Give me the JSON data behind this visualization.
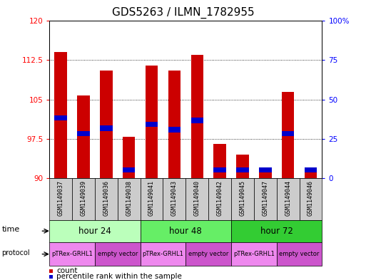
{
  "title": "GDS5263 / ILMN_1782955",
  "samples": [
    "GSM1149037",
    "GSM1149039",
    "GSM1149036",
    "GSM1149038",
    "GSM1149041",
    "GSM1149043",
    "GSM1149040",
    "GSM1149042",
    "GSM1149045",
    "GSM1149047",
    "GSM1149044",
    "GSM1149046"
  ],
  "red_values": [
    114.0,
    105.8,
    110.5,
    97.8,
    111.5,
    110.5,
    113.5,
    96.5,
    94.5,
    91.5,
    106.5,
    92.0
  ],
  "blue_values": [
    101.5,
    98.5,
    99.5,
    91.5,
    100.2,
    99.2,
    101.0,
    91.5,
    91.5,
    91.5,
    98.5,
    91.5
  ],
  "ymin": 90,
  "ymax": 120,
  "yticks": [
    90,
    97.5,
    105,
    112.5,
    120
  ],
  "y2ticks_pct": [
    0,
    25,
    50,
    75,
    100
  ],
  "y2labels": [
    "0",
    "25",
    "50",
    "75",
    "100%"
  ],
  "time_groups": [
    {
      "label": "hour 24",
      "start": 0,
      "end": 4,
      "color": "#bbffbb"
    },
    {
      "label": "hour 48",
      "start": 4,
      "end": 8,
      "color": "#66ee66"
    },
    {
      "label": "hour 72",
      "start": 8,
      "end": 12,
      "color": "#33cc33"
    }
  ],
  "protocol_groups": [
    {
      "label": "pTRex-GRHL1",
      "start": 0,
      "end": 2,
      "color": "#ee88ee"
    },
    {
      "label": "empty vector",
      "start": 2,
      "end": 4,
      "color": "#cc55cc"
    },
    {
      "label": "pTRex-GRHL1",
      "start": 4,
      "end": 6,
      "color": "#ee88ee"
    },
    {
      "label": "empty vector",
      "start": 6,
      "end": 8,
      "color": "#cc55cc"
    },
    {
      "label": "pTRex-GRHL1",
      "start": 8,
      "end": 10,
      "color": "#ee88ee"
    },
    {
      "label": "empty vector",
      "start": 10,
      "end": 12,
      "color": "#cc55cc"
    }
  ],
  "red_color": "#cc0000",
  "blue_color": "#0000cc",
  "bar_width": 0.55,
  "title_fontsize": 11,
  "tick_fontsize": 7.5,
  "label_fontsize": 8.5,
  "bar_base": 90,
  "bg_color": "#ffffff",
  "sample_bg": "#cccccc"
}
